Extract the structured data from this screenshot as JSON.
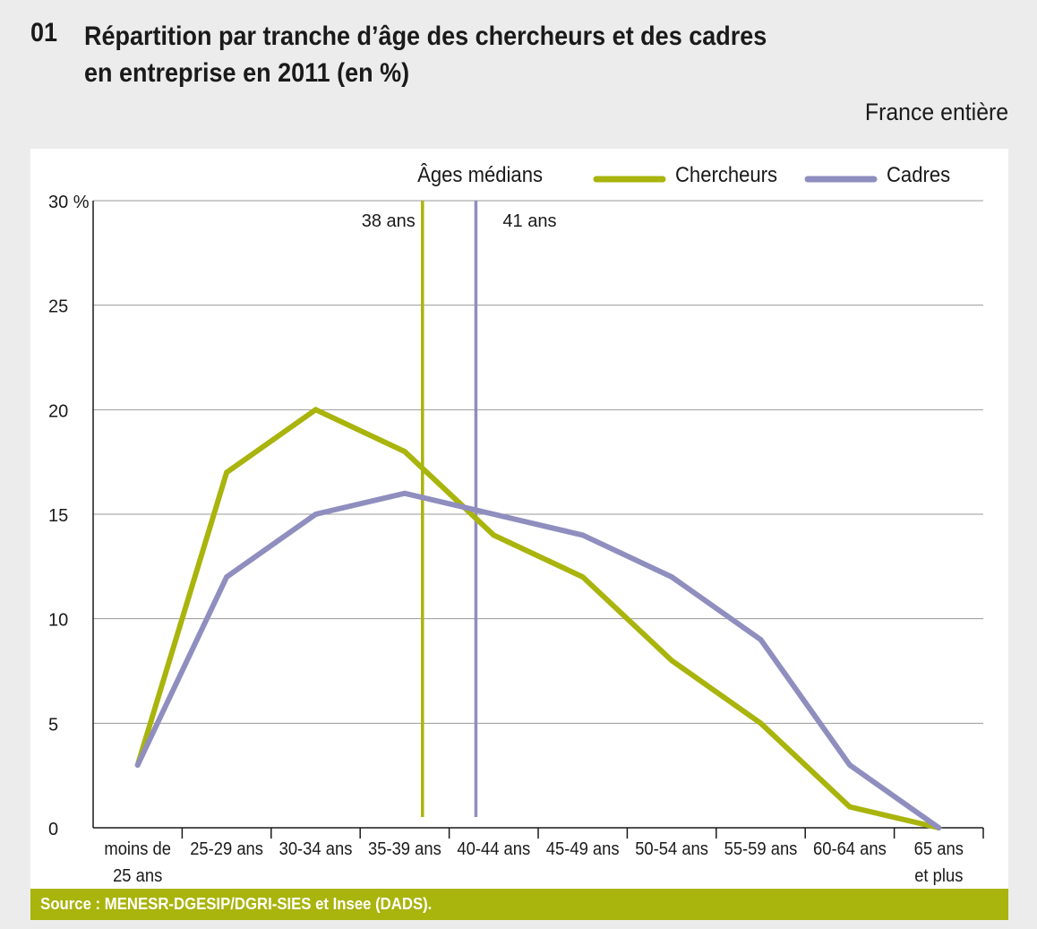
{
  "header": {
    "number": "01",
    "title_line1": "Répartition par tranche d’âge des chercheurs et des cadres",
    "title_line2": "en entreprise en 2011 (en %)",
    "subtitle": "France entière"
  },
  "source": "Source : MENESR-DGESIP/DGRI-SIES et Insee (DADS).",
  "colors": {
    "chercheurs": "#a9b40c",
    "cadres": "#8f8ebf",
    "grid": "#9a9a9a",
    "background": "#ececec",
    "source_bar": "#a9b40c"
  },
  "chart_data": {
    "type": "line",
    "categories": [
      [
        "moins de",
        "25 ans"
      ],
      [
        "25-29 ans"
      ],
      [
        "30-34 ans"
      ],
      [
        "35-39 ans"
      ],
      [
        "40-44 ans"
      ],
      [
        "45-49 ans"
      ],
      [
        "50-54 ans"
      ],
      [
        "55-59 ans"
      ],
      [
        "60-64 ans"
      ],
      [
        "65 ans",
        "et plus"
      ]
    ],
    "series": [
      {
        "name": "Chercheurs",
        "color": "#a9b40c",
        "values": [
          3,
          17,
          20,
          18,
          14,
          12,
          8,
          5,
          1,
          0
        ]
      },
      {
        "name": "Cadres",
        "color": "#8f8ebf",
        "values": [
          3,
          12,
          15,
          16,
          15,
          14,
          12,
          9,
          3,
          0
        ]
      }
    ],
    "ylim": [
      0,
      30
    ],
    "yticks": [
      0,
      5,
      10,
      15,
      20,
      25,
      30
    ],
    "ytick_labels": [
      "0",
      "5",
      "10",
      "15",
      "20",
      "25",
      "30 %"
    ],
    "grid": true,
    "legend": {
      "title": "Âges médians",
      "placement": "top"
    },
    "median_lines": [
      {
        "series": "Chercheurs",
        "age": 38,
        "label": "38 ans",
        "color": "#a9b40c"
      },
      {
        "series": "Cadres",
        "age": 41,
        "label": "41 ans",
        "color": "#8f8ebf"
      }
    ]
  }
}
